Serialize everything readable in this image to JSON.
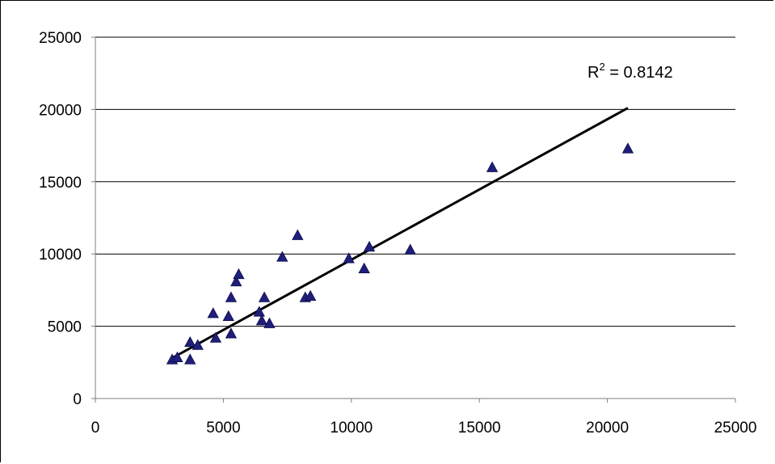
{
  "chart_data": {
    "type": "scatter",
    "xlim": [
      0,
      25000
    ],
    "ylim": [
      0,
      25000
    ],
    "x_ticks": [
      "0",
      "5000",
      "10000",
      "15000",
      "20000",
      "25000"
    ],
    "y_ticks": [
      "0",
      "5000",
      "10000",
      "15000",
      "20000",
      "25000"
    ],
    "grid": "horizontal",
    "marker": "triangle",
    "marker_color": "#1f1f7a",
    "points": [
      {
        "x": 3000,
        "y": 2700
      },
      {
        "x": 3200,
        "y": 2850
      },
      {
        "x": 3700,
        "y": 3900
      },
      {
        "x": 3700,
        "y": 2700
      },
      {
        "x": 4000,
        "y": 3700
      },
      {
        "x": 4700,
        "y": 4200
      },
      {
        "x": 4600,
        "y": 5900
      },
      {
        "x": 5200,
        "y": 5700
      },
      {
        "x": 5300,
        "y": 7000
      },
      {
        "x": 5300,
        "y": 4500
      },
      {
        "x": 5500,
        "y": 8100
      },
      {
        "x": 5600,
        "y": 8600
      },
      {
        "x": 6400,
        "y": 6000
      },
      {
        "x": 6500,
        "y": 5400
      },
      {
        "x": 6600,
        "y": 7000
      },
      {
        "x": 6800,
        "y": 5200
      },
      {
        "x": 7300,
        "y": 9800
      },
      {
        "x": 7900,
        "y": 11300
      },
      {
        "x": 8200,
        "y": 7000
      },
      {
        "x": 8400,
        "y": 7100
      },
      {
        "x": 9900,
        "y": 9700
      },
      {
        "x": 10500,
        "y": 9000
      },
      {
        "x": 10700,
        "y": 10500
      },
      {
        "x": 12300,
        "y": 10300
      },
      {
        "x": 15500,
        "y": 16000
      },
      {
        "x": 20800,
        "y": 17300
      }
    ],
    "trendline": {
      "x": [
        3000,
        20800
      ],
      "y": [
        2800,
        20100
      ],
      "color": "#000000"
    },
    "annotation": {
      "base": "R",
      "sup": "2",
      "rest": " = 0.8142"
    },
    "colors": {
      "grid": "#000000",
      "axis": "#808080",
      "trend": "#000000",
      "marker": "#1f1f7a"
    }
  }
}
